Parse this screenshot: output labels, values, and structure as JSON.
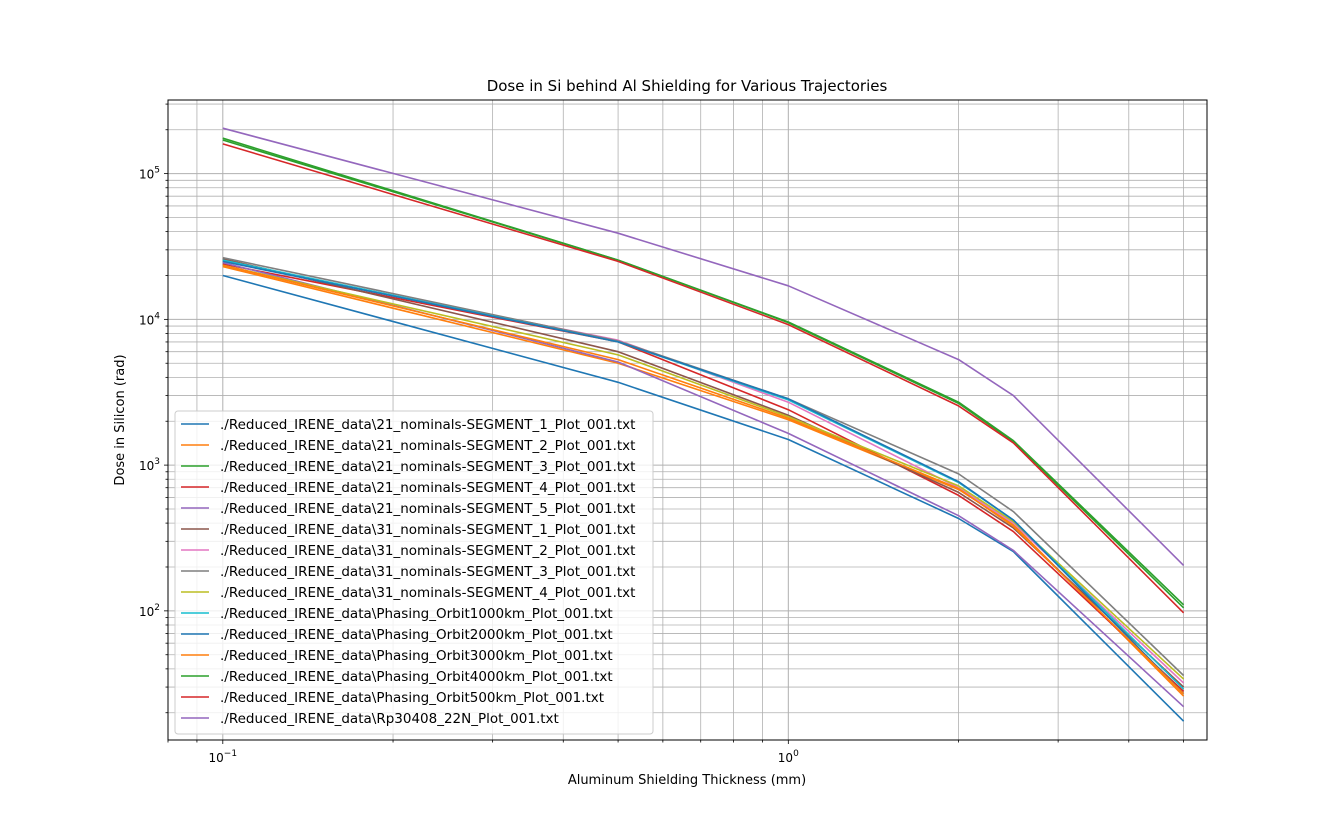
{
  "chart_data": {
    "type": "line",
    "title": "Dose in Si behind Al Shielding for Various Trajectories",
    "xlabel": "Aluminum Shielding Thickness (mm)",
    "ylabel": "Dose in Silicon (rad)",
    "xscale": "log",
    "yscale": "log",
    "xlim": [
      0.08,
      5.5
    ],
    "ylim": [
      13,
      320000
    ],
    "x_ticks": [
      {
        "value": 0.1,
        "label": "10",
        "exp": "−1"
      },
      {
        "value": 1,
        "label": "10",
        "exp": "0"
      }
    ],
    "y_ticks": [
      {
        "value": 100,
        "label": "10",
        "exp": "2"
      },
      {
        "value": 1000,
        "label": "10",
        "exp": "3"
      },
      {
        "value": 10000,
        "label": "10",
        "exp": "4"
      },
      {
        "value": 100000,
        "label": "10",
        "exp": "5"
      }
    ],
    "grid": "major and minor",
    "legend_position": "lower-left",
    "x": [
      0.1,
      0.5,
      1.0,
      2.0,
      2.5,
      5.0
    ],
    "series": [
      {
        "name": "./Reduced_IRENE_data\\21_nominals-SEGMENT_1_Plot_001.txt",
        "color": "#1f77b4",
        "values": [
          20000,
          3700,
          1500,
          430,
          255,
          17.5
        ]
      },
      {
        "name": "./Reduced_IRENE_data\\21_nominals-SEGMENT_2_Plot_001.txt",
        "color": "#ff7f0e",
        "values": [
          23000,
          5000,
          2050,
          680,
          390,
          26
        ]
      },
      {
        "name": "./Reduced_IRENE_data\\21_nominals-SEGMENT_3_Plot_001.txt",
        "color": "#2ca02c",
        "values": [
          175000,
          25500,
          9600,
          2700,
          1470,
          110
        ]
      },
      {
        "name": "./Reduced_IRENE_data\\21_nominals-SEGMENT_4_Plot_001.txt",
        "color": "#d62728",
        "values": [
          24000,
          7000,
          2400,
          620,
          350,
          28
        ]
      },
      {
        "name": "./Reduced_IRENE_data\\21_nominals-SEGMENT_5_Plot_001.txt",
        "color": "#9467bd",
        "values": [
          24500,
          5100,
          1650,
          450,
          260,
          22
        ]
      },
      {
        "name": "./Reduced_IRENE_data\\31_nominals-SEGMENT_1_Plot_001.txt",
        "color": "#8c564b",
        "values": [
          26000,
          6000,
          2200,
          650,
          370,
          30
        ]
      },
      {
        "name": "./Reduced_IRENE_data\\31_nominals-SEGMENT_2_Plot_001.txt",
        "color": "#e377c2",
        "values": [
          25000,
          7200,
          2700,
          700,
          400,
          32
        ]
      },
      {
        "name": "./Reduced_IRENE_data\\31_nominals-SEGMENT_3_Plot_001.txt",
        "color": "#7f7f7f",
        "values": [
          26500,
          7100,
          2850,
          870,
          480,
          36
        ]
      },
      {
        "name": "./Reduced_IRENE_data\\31_nominals-SEGMENT_4_Plot_001.txt",
        "color": "#bcbd22",
        "values": [
          23500,
          5700,
          2150,
          720,
          410,
          34
        ]
      },
      {
        "name": "./Reduced_IRENE_data\\Phasing_Orbit1000km_Plot_001.txt",
        "color": "#17becf",
        "values": [
          25500,
          7000,
          2800,
          760,
          420,
          29
        ]
      },
      {
        "name": "./Reduced_IRENE_data\\Phasing_Orbit2000km_Plot_001.txt",
        "color": "#1f77b4",
        "values": [
          25000,
          7000,
          2850,
          770,
          420,
          27
        ]
      },
      {
        "name": "./Reduced_IRENE_data\\Phasing_Orbit3000km_Plot_001.txt",
        "color": "#ff7f0e",
        "values": [
          23500,
          5300,
          2100,
          690,
          380,
          27
        ]
      },
      {
        "name": "./Reduced_IRENE_data\\Phasing_Orbit4000km_Plot_001.txt",
        "color": "#2ca02c",
        "values": [
          170000,
          25500,
          9500,
          2650,
          1450,
          105
        ]
      },
      {
        "name": "./Reduced_IRENE_data\\Phasing_Orbit500km_Plot_001.txt",
        "color": "#d62728",
        "values": [
          160000,
          25000,
          9200,
          2550,
          1420,
          97
        ]
      },
      {
        "name": "./Reduced_IRENE_data\\Rp30408_22N_Plot_001.txt",
        "color": "#9467bd",
        "values": [
          205000,
          39000,
          17000,
          5300,
          3000,
          205
        ]
      }
    ]
  }
}
